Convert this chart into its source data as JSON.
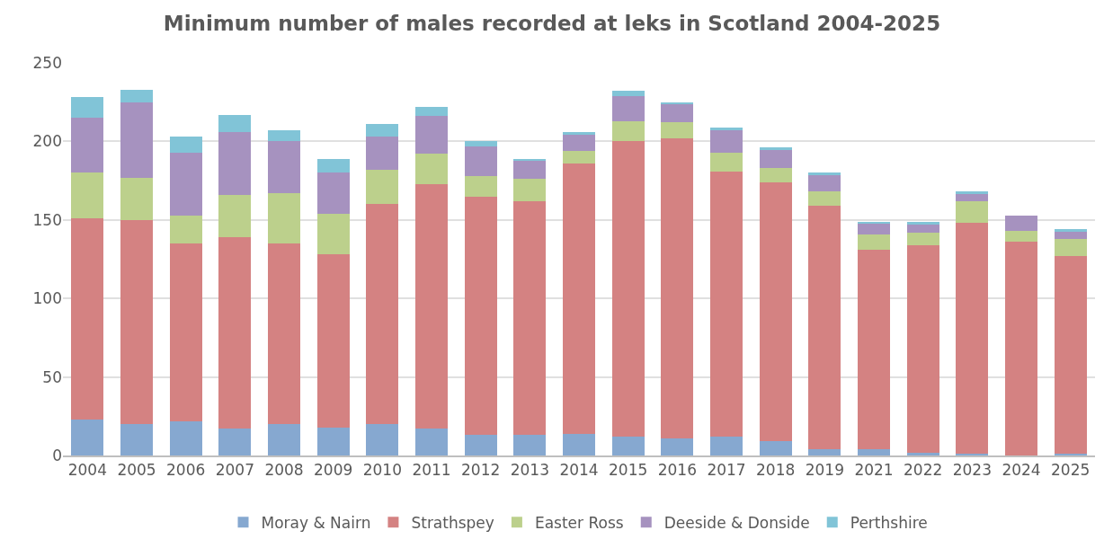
{
  "chart_data": {
    "type": "bar",
    "title": "Minimum number of males recorded at leks in Scotland 2004-2025",
    "stacked": true,
    "grid": "y",
    "legend": "bottom",
    "categories": [
      "2004",
      "2005",
      "2006",
      "2007",
      "2008",
      "2009",
      "2010",
      "2011",
      "2012",
      "2013",
      "2014",
      "2015",
      "2016",
      "2017",
      "2018",
      "2019",
      "2021",
      "2022",
      "2023",
      "2024",
      "2025"
    ],
    "ylim": [
      0,
      250
    ],
    "yticks": [
      0,
      50,
      100,
      150,
      200,
      250
    ],
    "series": [
      {
        "name": "Moray & Nairn",
        "color": "#86a8d0",
        "values": [
          23,
          20,
          22,
          17,
          20,
          18,
          20,
          17,
          13,
          13,
          14,
          12,
          11,
          12,
          9,
          4,
          4,
          2,
          1,
          0,
          1
        ]
      },
      {
        "name": "Strathspey",
        "color": "#d48282",
        "values": [
          128,
          130,
          113,
          122,
          115,
          110,
          140,
          156,
          152,
          149,
          172,
          188,
          191,
          169,
          165,
          155,
          127,
          132,
          147,
          136,
          126
        ]
      },
      {
        "name": "Easter Ross",
        "color": "#bcd08c",
        "values": [
          29,
          27,
          18,
          27,
          32,
          26,
          22,
          19,
          13,
          14,
          8,
          13,
          10,
          12,
          9,
          9,
          10,
          8,
          14,
          7,
          11
        ]
      },
      {
        "name": "Deeside & Donside",
        "color": "#a692bf",
        "values": [
          35,
          48,
          40,
          40,
          33,
          26,
          21,
          24,
          19,
          12,
          10,
          16,
          12,
          14,
          12,
          11,
          7,
          5,
          5,
          10,
          5
        ]
      },
      {
        "name": "Perthshire",
        "color": "#81c4d7",
        "values": [
          13,
          8,
          10,
          11,
          7,
          9,
          8,
          6,
          3,
          1,
          2,
          3,
          1,
          2,
          1,
          1,
          1,
          2,
          1,
          0,
          1
        ]
      }
    ]
  }
}
